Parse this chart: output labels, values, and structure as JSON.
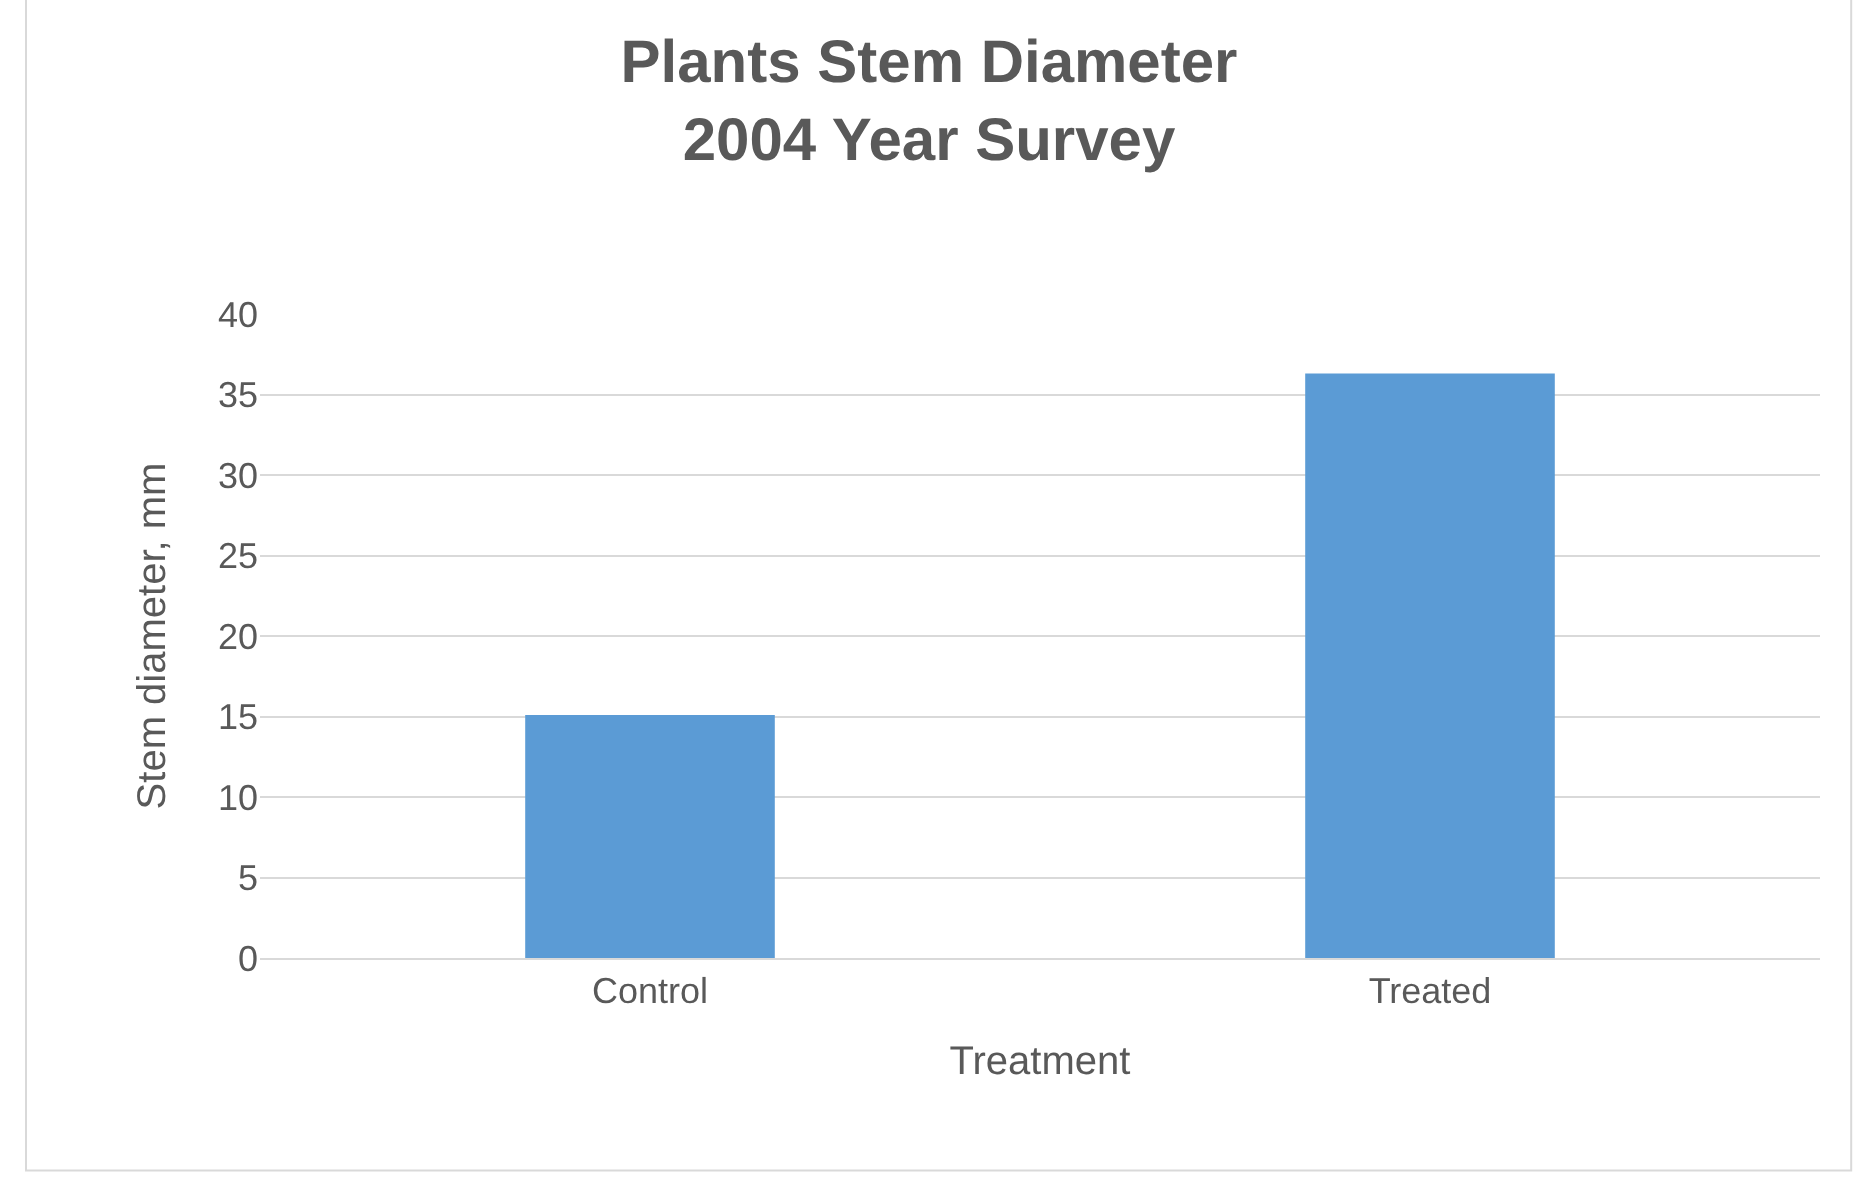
{
  "chart_data": {
    "type": "bar",
    "title": "Plants Stem Diameter\n2004 Year Survey",
    "xlabel": "Treatment",
    "ylabel": "Stem diameter, mm",
    "categories": [
      "Control",
      "Treated"
    ],
    "series": [
      {
        "color": "#5b9bd5",
        "values": [
          15.1,
          36.3
        ]
      }
    ],
    "ylim": [
      0,
      40
    ],
    "yticks": [
      0,
      5,
      10,
      15,
      20,
      25,
      30,
      35,
      40
    ],
    "grid": "y"
  }
}
